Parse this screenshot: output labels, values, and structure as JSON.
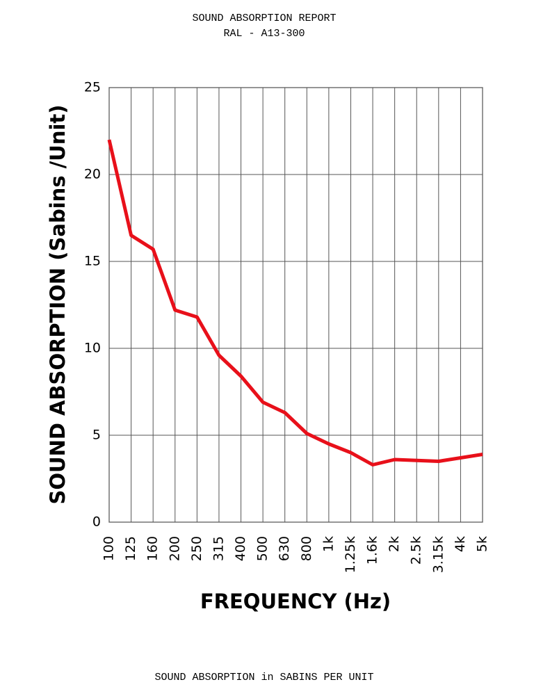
{
  "chart_data": {
    "type": "line",
    "title": "SOUND ABSORPTION REPORT",
    "subtitle": "RAL - A13-300",
    "y_label": "SOUND ABSORPTION (Sabins /Unit)",
    "x_label": "FREQUENCY (Hz)",
    "footer": "SOUND ABSORPTION in SABINS PER UNIT",
    "categories": [
      "100",
      "125",
      "160",
      "200",
      "250",
      "315",
      "400",
      "500",
      "630",
      "800",
      "1k",
      "1.25k",
      "1.6k",
      "2k",
      "2.5k",
      "3.15k",
      "4k",
      "5k"
    ],
    "values": [
      22.0,
      16.5,
      15.7,
      12.2,
      11.8,
      9.6,
      8.4,
      6.9,
      6.3,
      5.1,
      4.5,
      4.0,
      3.3,
      3.6,
      3.55,
      3.5,
      3.7,
      3.9
    ],
    "color": "#e8101a",
    "ylim": [
      0,
      25
    ],
    "yticks": [
      0,
      5,
      10,
      15,
      20,
      25
    ],
    "grid": true
  }
}
